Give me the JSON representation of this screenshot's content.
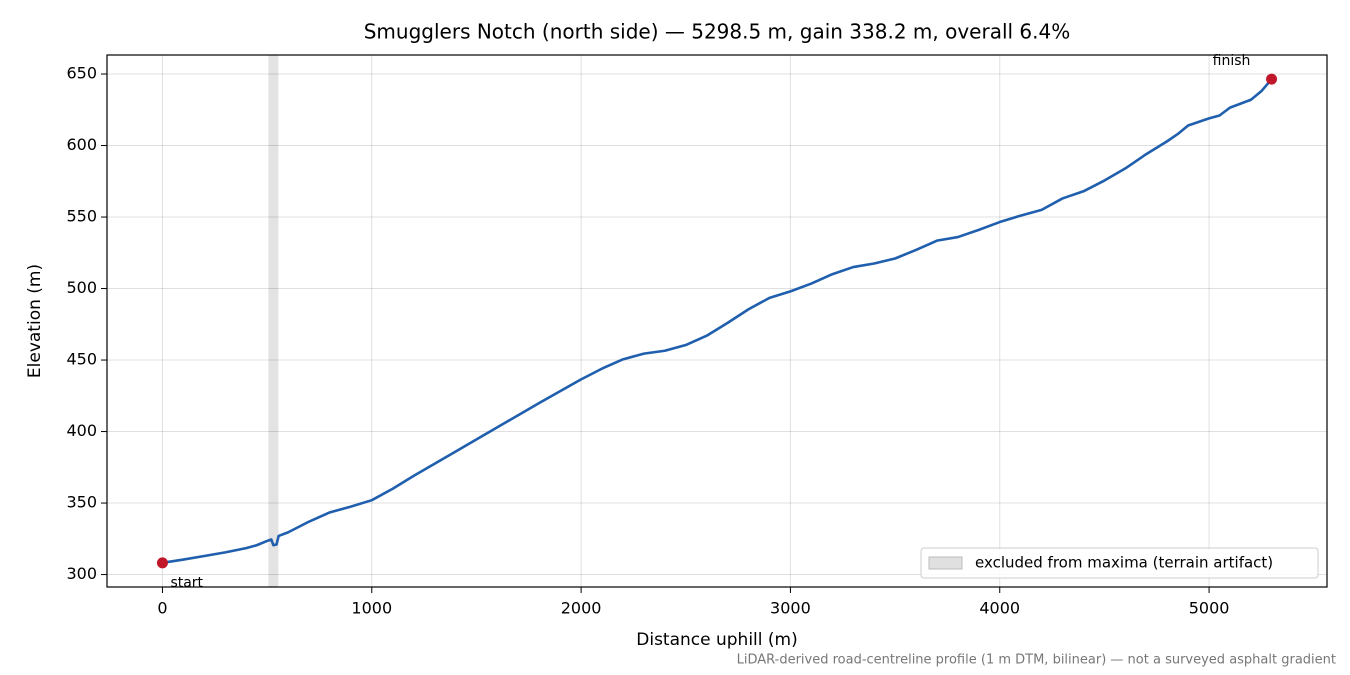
{
  "chart_data": {
    "type": "line",
    "title": "Smugglers Notch (north side) — 5298.5 m, gain 338.2 m, overall 6.4%",
    "x_label": "Distance uphill (m)",
    "y_label": "Elevation (m)",
    "note": "LiDAR-derived road-centreline profile (1 m DTM, bilinear) — not a surveyed asphalt gradient",
    "color": "#1f5fad",
    "x": [
      0,
      100,
      200,
      300,
      400,
      450,
      500,
      520,
      530,
      545,
      555,
      600,
      700,
      800,
      900,
      1000,
      1100,
      1200,
      1400,
      1600,
      1800,
      2000,
      2100,
      2200,
      2300,
      2400,
      2500,
      2600,
      2700,
      2800,
      2900,
      3000,
      3100,
      3200,
      3300,
      3400,
      3500,
      3600,
      3700,
      3800,
      3900,
      4000,
      4100,
      4200,
      4300,
      4400,
      4500,
      4600,
      4700,
      4800,
      4850,
      4900,
      5000,
      5050,
      5100,
      5200,
      5250,
      5298.5
    ],
    "values": [
      308.2,
      310.5,
      313,
      315.5,
      318.5,
      320.5,
      323.5,
      324.5,
      320.5,
      321,
      327,
      329.5,
      337,
      343.5,
      347.5,
      352,
      360,
      369,
      386,
      403,
      420,
      436.5,
      444,
      450.5,
      454.5,
      456.5,
      460.5,
      467,
      476,
      485.5,
      493.5,
      498,
      503.5,
      510,
      515,
      517.5,
      521,
      527,
      533.5,
      536,
      541,
      546.5,
      551,
      555,
      563,
      568,
      575.5,
      584,
      594,
      603,
      608,
      614,
      619,
      621,
      626.5,
      632,
      638,
      646.4
    ],
    "markers": {
      "color": "#c0182a",
      "labels": [
        "start",
        "finish"
      ]
    },
    "excluded_span": {
      "label": "excluded from maxima (terrain artifact)",
      "range": [
        506,
        554
      ],
      "color": "#e0e0e0"
    },
    "xlim": [
      -264.9,
      5563.4
    ],
    "ylim": [
      291.3,
      663.3
    ],
    "xticks": [
      0,
      1000,
      2000,
      3000,
      4000,
      5000
    ],
    "yticks": [
      300,
      350,
      400,
      450,
      500,
      550,
      600,
      650
    ],
    "grid": true,
    "legend": "lower right"
  }
}
